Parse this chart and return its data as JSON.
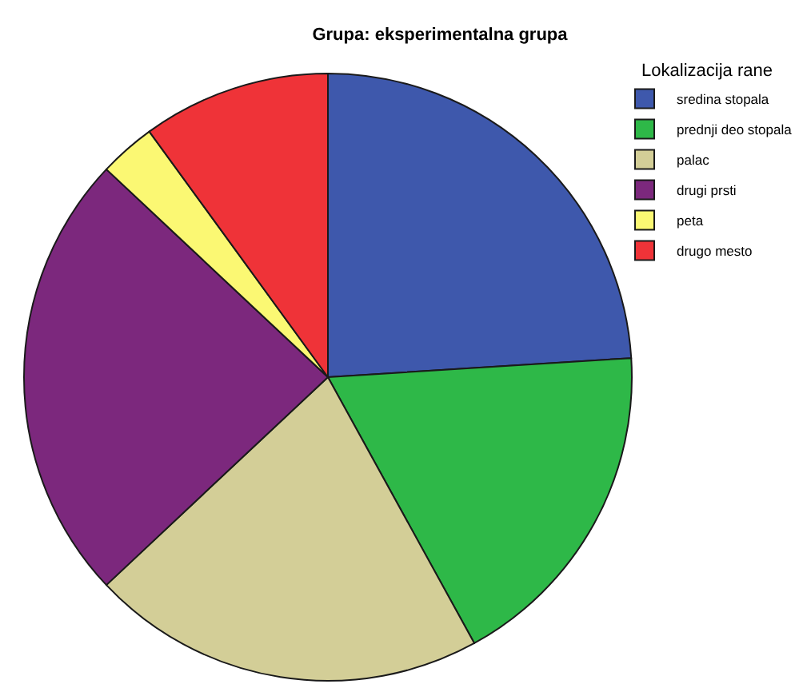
{
  "chart_data": {
    "type": "pie",
    "title": "Grupa: eksperimentalna grupa",
    "legend_title": "Lokalizacija rane",
    "categories": [
      "sredina stopala",
      "prednji deo stopala",
      "palac",
      "drugi prsti",
      "peta",
      "drugo mesto"
    ],
    "values": [
      24,
      18,
      21,
      24,
      3,
      10
    ],
    "colors": [
      "#3e58ac",
      "#2eb848",
      "#d3ce97",
      "#7c287d",
      "#fbf873",
      "#ef3338"
    ],
    "legend": "top right"
  }
}
